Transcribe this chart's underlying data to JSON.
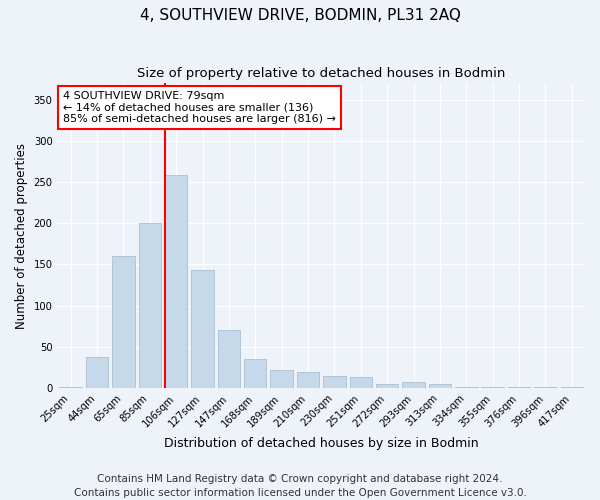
{
  "title": "4, SOUTHVIEW DRIVE, BODMIN, PL31 2AQ",
  "subtitle": "Size of property relative to detached houses in Bodmin",
  "xlabel": "Distribution of detached houses by size in Bodmin",
  "ylabel": "Number of detached properties",
  "categories": [
    "25sqm",
    "44sqm",
    "65sqm",
    "85sqm",
    "106sqm",
    "127sqm",
    "147sqm",
    "168sqm",
    "189sqm",
    "210sqm",
    "230sqm",
    "251sqm",
    "272sqm",
    "293sqm",
    "313sqm",
    "334sqm",
    "355sqm",
    "376sqm",
    "396sqm",
    "417sqm"
  ],
  "values": [
    2,
    38,
    160,
    200,
    258,
    143,
    70,
    35,
    22,
    20,
    15,
    13,
    5,
    7,
    5,
    1,
    2,
    1,
    1,
    2
  ],
  "bar_color": "#c6d9ea",
  "bar_edge_color": "#aabfcf",
  "red_line_x": 3.575,
  "annotation_text1": "4 SOUTHVIEW DRIVE: 79sqm",
  "annotation_text2": "← 14% of detached houses are smaller (136)",
  "annotation_text3": "85% of semi-detached houses are larger (816) →",
  "annotation_box_color": "white",
  "annotation_box_edge_color": "red",
  "footer1": "Contains HM Land Registry data © Crown copyright and database right 2024.",
  "footer2": "Contains public sector information licensed under the Open Government Licence v3.0.",
  "ylim": [
    0,
    370
  ],
  "background_color": "#eef2f9",
  "grid_color": "#ffffff",
  "title_fontsize": 11,
  "subtitle_fontsize": 9.5,
  "ylabel_fontsize": 8.5,
  "xlabel_fontsize": 9,
  "tick_fontsize": 7.2,
  "footer_fontsize": 7.5,
  "annotation_fontsize": 8.0
}
